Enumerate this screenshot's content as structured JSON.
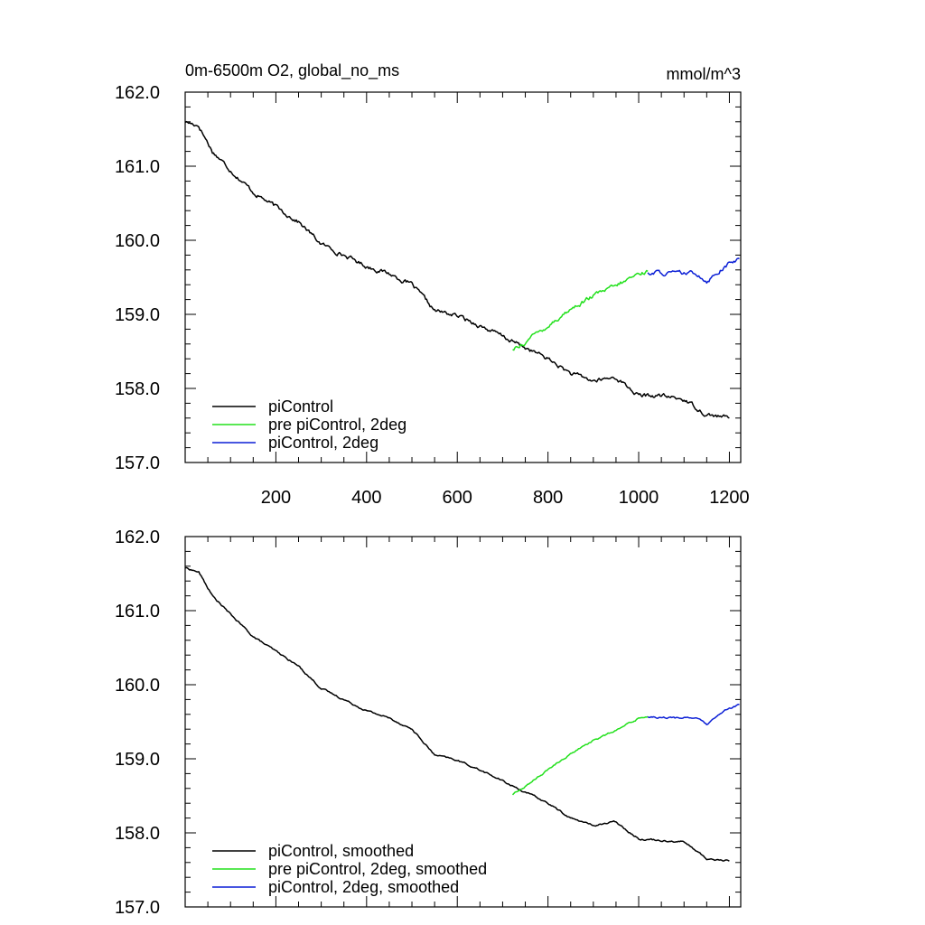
{
  "units_label": "mmol/m^3",
  "chart_data": [
    {
      "type": "line",
      "title": "0m-6500m O2, global_no_ms",
      "xlabel": "",
      "ylabel": "",
      "xlim": [
        0,
        1225
      ],
      "ylim": [
        157.0,
        162.0
      ],
      "x_ticks": [
        200,
        400,
        600,
        800,
        1000,
        1200
      ],
      "x_tick_labels": [
        "200",
        "400",
        "600",
        "800",
        "1000",
        "1200"
      ],
      "y_ticks": [
        157.0,
        158.0,
        159.0,
        160.0,
        161.0,
        162.0
      ],
      "y_tick_labels": [
        "157.0",
        "158.0",
        "159.0",
        "160.0",
        "161.0",
        "162.0"
      ],
      "grid": false,
      "legend_position": "bottom-left",
      "noise": 0.045,
      "series": [
        {
          "name": "piControl",
          "color": "#000000",
          "points": [
            [
              0,
              161.6
            ],
            [
              30,
              161.55
            ],
            [
              60,
              161.2
            ],
            [
              100,
              160.95
            ],
            [
              150,
              160.65
            ],
            [
              200,
              160.45
            ],
            [
              250,
              160.25
            ],
            [
              300,
              159.95
            ],
            [
              350,
              159.8
            ],
            [
              400,
              159.65
            ],
            [
              450,
              159.55
            ],
            [
              500,
              159.4
            ],
            [
              550,
              159.05
            ],
            [
              600,
              158.98
            ],
            [
              650,
              158.85
            ],
            [
              700,
              158.7
            ],
            [
              750,
              158.55
            ],
            [
              800,
              158.4
            ],
            [
              850,
              158.2
            ],
            [
              900,
              158.1
            ],
            [
              950,
              158.15
            ],
            [
              1000,
              157.9
            ],
            [
              1050,
              157.9
            ],
            [
              1100,
              157.85
            ],
            [
              1150,
              157.65
            ],
            [
              1200,
              157.6
            ]
          ]
        },
        {
          "name": "pre piControl, 2deg",
          "color": "#22e01c",
          "points": [
            [
              722,
              158.52
            ],
            [
              750,
              158.63
            ],
            [
              800,
              158.85
            ],
            [
              850,
              159.07
            ],
            [
              900,
              159.25
            ],
            [
              950,
              159.38
            ],
            [
              1000,
              159.55
            ],
            [
              1020,
              159.58
            ]
          ]
        },
        {
          "name": "piControl, 2deg",
          "color": "#0b1fd6",
          "points": [
            [
              1020,
              159.57
            ],
            [
              1050,
              159.56
            ],
            [
              1080,
              159.55
            ],
            [
              1110,
              159.55
            ],
            [
              1130,
              159.55
            ],
            [
              1150,
              159.45
            ],
            [
              1170,
              159.55
            ],
            [
              1190,
              159.65
            ],
            [
              1222,
              159.75
            ]
          ]
        }
      ]
    },
    {
      "type": "line",
      "title": "",
      "xlabel": "",
      "ylabel": "",
      "xlim": [
        0,
        1225
      ],
      "ylim": [
        157.0,
        162.0
      ],
      "x_ticks": [
        200,
        400,
        600,
        800,
        1000,
        1200
      ],
      "x_tick_labels": [],
      "y_ticks": [
        157.0,
        158.0,
        159.0,
        160.0,
        161.0,
        162.0
      ],
      "y_tick_labels": [
        "157.0",
        "158.0",
        "159.0",
        "160.0",
        "161.0",
        "162.0"
      ],
      "grid": false,
      "legend_position": "bottom-left",
      "noise": 0.018,
      "series": [
        {
          "name": "piControl, smoothed",
          "color": "#000000",
          "points": [
            [
              0,
              161.58
            ],
            [
              30,
              161.52
            ],
            [
              60,
              161.2
            ],
            [
              100,
              160.95
            ],
            [
              150,
              160.65
            ],
            [
              200,
              160.45
            ],
            [
              250,
              160.25
            ],
            [
              300,
              159.95
            ],
            [
              350,
              159.8
            ],
            [
              400,
              159.65
            ],
            [
              450,
              159.55
            ],
            [
              500,
              159.4
            ],
            [
              550,
              159.05
            ],
            [
              600,
              158.98
            ],
            [
              650,
              158.85
            ],
            [
              700,
              158.7
            ],
            [
              750,
              158.55
            ],
            [
              800,
              158.4
            ],
            [
              850,
              158.2
            ],
            [
              900,
              158.1
            ],
            [
              950,
              158.15
            ],
            [
              1000,
              157.92
            ],
            [
              1050,
              157.9
            ],
            [
              1100,
              157.88
            ],
            [
              1150,
              157.65
            ],
            [
              1200,
              157.62
            ]
          ]
        },
        {
          "name": "pre piControl, 2deg, smoothed",
          "color": "#22e01c",
          "points": [
            [
              722,
              158.52
            ],
            [
              750,
              158.63
            ],
            [
              800,
              158.85
            ],
            [
              850,
              159.07
            ],
            [
              900,
              159.25
            ],
            [
              950,
              159.38
            ],
            [
              1000,
              159.55
            ],
            [
              1020,
              159.57
            ]
          ]
        },
        {
          "name": "piControl, 2deg, smoothed",
          "color": "#0b1fd6",
          "points": [
            [
              1020,
              159.57
            ],
            [
              1050,
              159.56
            ],
            [
              1080,
              159.55
            ],
            [
              1110,
              159.56
            ],
            [
              1130,
              159.55
            ],
            [
              1150,
              159.46
            ],
            [
              1170,
              159.55
            ],
            [
              1190,
              159.65
            ],
            [
              1222,
              159.73
            ]
          ]
        }
      ]
    }
  ]
}
